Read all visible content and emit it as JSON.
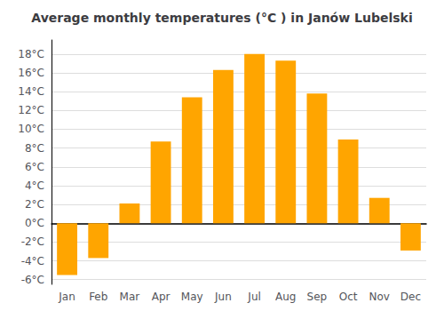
{
  "chart_data": {
    "type": "bar",
    "title": "Average monthly temperatures (°C ) in Janów Lubelski",
    "categories": [
      "Jan",
      "Feb",
      "Mar",
      "Apr",
      "May",
      "Jun",
      "Jul",
      "Aug",
      "Sep",
      "Oct",
      "Nov",
      "Dec"
    ],
    "values": [
      -5.5,
      -3.7,
      2.1,
      8.7,
      13.4,
      16.3,
      18.0,
      17.3,
      13.8,
      8.9,
      2.7,
      -2.9
    ],
    "color": "#FFA500",
    "ylim": [
      -6.5,
      19.5
    ],
    "yticks": [
      {
        "value": -6,
        "label": "-6°C"
      },
      {
        "value": -4,
        "label": "-4°C"
      },
      {
        "value": -2,
        "label": "-2°C"
      },
      {
        "value": 0,
        "label": "0°C"
      },
      {
        "value": 2,
        "label": "2°C"
      },
      {
        "value": 4,
        "label": "4°C"
      },
      {
        "value": 6,
        "label": "6°C"
      },
      {
        "value": 8,
        "label": "8°C"
      },
      {
        "value": 10,
        "label": "10°C"
      },
      {
        "value": 12,
        "label": "12°C"
      },
      {
        "value": 14,
        "label": "14°C"
      },
      {
        "value": 16,
        "label": "16°C"
      },
      {
        "value": 18,
        "label": "18°C"
      }
    ],
    "grid": true
  }
}
